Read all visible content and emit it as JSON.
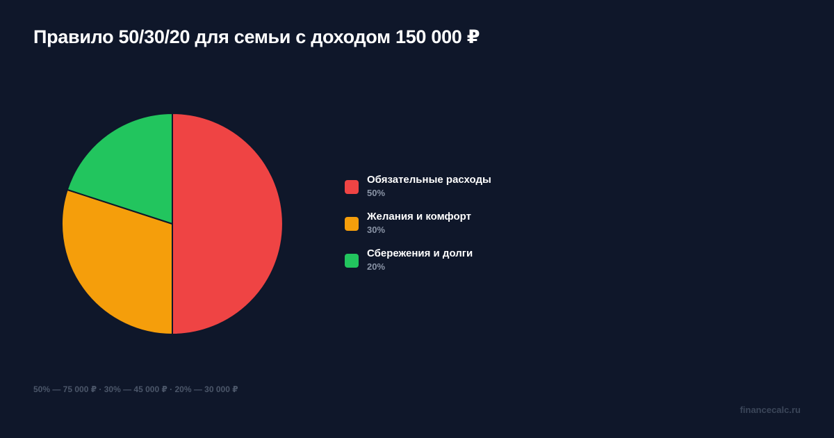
{
  "header": {
    "title": "Правило 50/30/20 для семьи с доходом 150 000 ₽"
  },
  "legend": {
    "items": [
      {
        "label": "Обязательные расходы",
        "value": "50%",
        "color": "#ef4444"
      },
      {
        "label": "Желания и комфорт",
        "value": "30%",
        "color": "#f59e0b"
      },
      {
        "label": "Сбережения и долги",
        "value": "20%",
        "color": "#22c55e"
      }
    ]
  },
  "footer": {
    "note": "50% — 75 000 ₽ · 30% — 45 000 ₽ · 20% — 30 000 ₽",
    "brand": "financecalc.ru"
  },
  "colors": {
    "background": "#0f172a",
    "needs": "#ef4444",
    "wants": "#f59e0b",
    "savings": "#22c55e"
  },
  "chart_data": {
    "type": "pie",
    "title": "Правило 50/30/20 для семьи с доходом 150 000 ₽",
    "categories": [
      "Обязательные расходы",
      "Желания и комфорт",
      "Сбережения и долги"
    ],
    "values": [
      50,
      30,
      20
    ],
    "amounts_rub": [
      75000,
      45000,
      30000
    ],
    "total_income_rub": 150000,
    "colors": [
      "#ef4444",
      "#f59e0b",
      "#22c55e"
    ],
    "start_angle": "top (12 o'clock), clockwise",
    "legend_position": "right",
    "annotations": [
      "50% — 75 000 ₽ · 30% — 45 000 ₽ · 20% — 30 000 ₽"
    ]
  }
}
